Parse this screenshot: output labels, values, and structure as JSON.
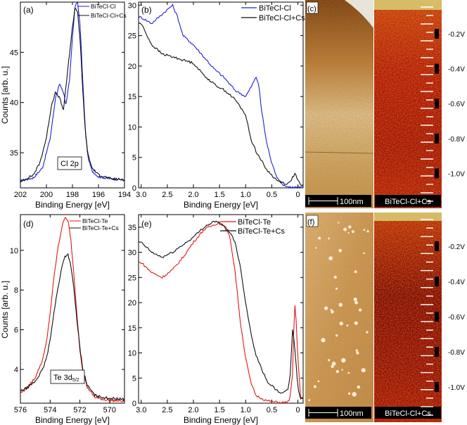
{
  "panels": {
    "a": {
      "label": "(a)",
      "xlabel": "Binding Energy [eV]",
      "ylabel": "Counts [arb. u.]",
      "xlim": [
        202,
        194
      ],
      "ylim": [
        31.5,
        50
      ],
      "xticks": [
        "202",
        "200",
        "198",
        "196",
        "194"
      ],
      "yticks": [
        "35",
        "40",
        "45"
      ],
      "annotation": "Cl 2p",
      "legend": [
        "BiTeCl-Cl",
        "BiTeCl-Cl+Cs"
      ]
    },
    "b": {
      "label": "(b)",
      "xlabel": "Binding Energy [eV]",
      "xlim": [
        3.05,
        -0.1
      ],
      "ylim": [
        0,
        30.5
      ],
      "xticks": [
        "3.0",
        "2.5",
        "2.0",
        "1.5",
        "1.0",
        "0.5",
        "0"
      ],
      "yticks": [
        "0",
        "5",
        "10",
        "15",
        "20",
        "25",
        "30"
      ],
      "legend": [
        "BiTeCl-Cl",
        "BiTeCl-Cl+Cs"
      ]
    },
    "c": {
      "label": "(c)",
      "scalebar": "100nm",
      "caption": "BiTeCl-Cl+Cs",
      "biases": [
        "-0.2V",
        "-0.4V",
        "-0.6V",
        "-0.8V",
        "-1.0V"
      ]
    },
    "d": {
      "label": "(d)",
      "xlabel": "Binding Energy [eV]",
      "ylabel": "Counts [arb. u.]",
      "xlim": [
        576,
        569
      ],
      "ylim": [
        2.3,
        11.8
      ],
      "xticks": [
        "576",
        "574",
        "572",
        "570"
      ],
      "yticks": [
        "4",
        "6",
        "8",
        "10"
      ],
      "annotation": "Te 3d",
      "annotation_sub": "5/2",
      "legend": [
        "BiTeCl-Te",
        "BiTeCl-Te+Cs"
      ]
    },
    "e": {
      "label": "(e)",
      "xlabel": "Binding Energy [eV]",
      "xlim": [
        3.05,
        -0.1
      ],
      "ylim": [
        0,
        37.5
      ],
      "xticks": [
        "3.0",
        "2.5",
        "2.0",
        "1.5",
        "1.0",
        "0.5",
        "0"
      ],
      "yticks": [
        "0",
        "5",
        "10",
        "15",
        "20",
        "25",
        "30",
        "35"
      ],
      "legend": [
        "BiTeCl-Te",
        "BiTeCl-Te+Cs"
      ]
    },
    "f": {
      "label": "(f)",
      "scalebar": "100nm",
      "caption": "BiTeCl-Cl+Cs",
      "biases": [
        "-0.2V",
        "-0.4V",
        "-0.6V",
        "-0.8V",
        "-1.0V"
      ]
    }
  },
  "colors": {
    "blue": "#1f1fdc",
    "black": "#111111",
    "red": "#e01818"
  },
  "chart_data": [
    {
      "type": "line",
      "panel": "a",
      "title": "Cl 2p",
      "xlabel": "Binding Energy [eV]",
      "ylabel": "Counts [arb. u.]",
      "xlim": [
        202,
        194
      ],
      "ylim": [
        31.5,
        50
      ],
      "series": [
        {
          "name": "BiTeCl-Cl",
          "color": "#1f1fdc",
          "x": [
            202,
            201,
            200.3,
            199.7,
            199.3,
            199.0,
            198.7,
            198.5,
            198.2,
            198.0,
            197.8,
            197.6,
            197.4,
            197.2,
            197.0,
            196.8,
            196.5,
            196.0,
            195.5,
            195.0,
            194.0
          ],
          "y": [
            32.2,
            32.5,
            33.5,
            36.5,
            40.5,
            41.8,
            41.0,
            39.8,
            42.5,
            46.5,
            49.6,
            50.0,
            47.5,
            42.0,
            37.0,
            34.5,
            33.2,
            32.6,
            32.5,
            32.4,
            32.3
          ]
        },
        {
          "name": "BiTeCl-Cl+Cs",
          "color": "#111111",
          "x": [
            202,
            201,
            200.5,
            200.0,
            199.6,
            199.3,
            199.0,
            198.7,
            198.5,
            198.3,
            198.0,
            197.8,
            197.6,
            197.4,
            197.2,
            197.0,
            196.8,
            196.5,
            196.0,
            195.0,
            194.0
          ],
          "y": [
            32.1,
            32.8,
            34.0,
            36.5,
            39.8,
            41.0,
            40.5,
            39.2,
            41.5,
            44.0,
            47.5,
            49.5,
            49.0,
            46.0,
            41.0,
            37.0,
            34.8,
            33.5,
            32.8,
            32.4,
            32.3
          ]
        }
      ]
    },
    {
      "type": "line",
      "panel": "b",
      "xlabel": "Binding Energy [eV]",
      "xlim": [
        3.05,
        -0.1
      ],
      "ylim": [
        0,
        30.5
      ],
      "series": [
        {
          "name": "BiTeCl-Cl",
          "color": "#1f1fdc",
          "x": [
            3.0,
            2.8,
            2.6,
            2.4,
            2.3,
            2.2,
            2.0,
            1.8,
            1.6,
            1.4,
            1.2,
            1.0,
            0.9,
            0.8,
            0.75,
            0.7,
            0.6,
            0.5,
            0.4,
            0.3,
            0.2,
            0.1,
            0.0
          ],
          "y": [
            28,
            27,
            28.5,
            30,
            28,
            25,
            23.5,
            21.5,
            19.5,
            18,
            16,
            15,
            16.5,
            18.2,
            17,
            13,
            7.5,
            4,
            1.8,
            0.6,
            0.2,
            0.1,
            0.1
          ]
        },
        {
          "name": "BiTeCl-Cl+Cs",
          "color": "#111111",
          "x": [
            3.0,
            2.8,
            2.6,
            2.4,
            2.2,
            2.0,
            1.8,
            1.6,
            1.4,
            1.2,
            1.0,
            0.9,
            0.8,
            0.6,
            0.4,
            0.2,
            0.15,
            0.1,
            0.05,
            0.0,
            -0.05
          ],
          "y": [
            27,
            23.5,
            22,
            21.5,
            21,
            20.5,
            18.5,
            17,
            16,
            14.5,
            12,
            8,
            6,
            3,
            1.2,
            0.6,
            1.0,
            1.8,
            2.3,
            1.2,
            0.4
          ]
        }
      ]
    },
    {
      "type": "line",
      "panel": "d",
      "title": "Te 3d5/2",
      "xlabel": "Binding Energy [eV]",
      "ylabel": "Counts [arb. u.]",
      "xlim": [
        576,
        569
      ],
      "ylim": [
        2.3,
        11.8
      ],
      "series": [
        {
          "name": "BiTeCl-Te",
          "color": "#e01818",
          "x": [
            576,
            575.5,
            575,
            574.5,
            574.2,
            574.0,
            573.8,
            573.5,
            573.2,
            573.0,
            572.8,
            572.6,
            572.4,
            572.2,
            572.0,
            571.8,
            571.5,
            571.0,
            570.5,
            570.0,
            569.0
          ],
          "y": [
            2.8,
            3.1,
            3.6,
            4.5,
            5.6,
            6.8,
            8.3,
            10.0,
            11.2,
            11.7,
            11.5,
            10.5,
            8.7,
            6.8,
            5.0,
            3.9,
            3.1,
            2.6,
            2.5,
            2.45,
            2.4
          ]
        },
        {
          "name": "BiTeCl-Te+Cs",
          "color": "#111111",
          "x": [
            576,
            575.5,
            575,
            574.5,
            574.2,
            574.0,
            573.8,
            573.5,
            573.2,
            573.0,
            572.8,
            572.6,
            572.4,
            572.2,
            572.0,
            571.8,
            571.5,
            571.0,
            570.5,
            570.0,
            569.0
          ],
          "y": [
            2.9,
            3.1,
            3.4,
            4.0,
            4.7,
            5.5,
            6.6,
            8.0,
            9.2,
            9.7,
            9.8,
            9.2,
            8.0,
            6.5,
            5.1,
            4.0,
            3.2,
            2.7,
            2.6,
            2.55,
            2.5
          ]
        }
      ]
    },
    {
      "type": "line",
      "panel": "e",
      "xlabel": "Binding Energy [eV]",
      "xlim": [
        3.05,
        -0.1
      ],
      "ylim": [
        0,
        37.5
      ],
      "series": [
        {
          "name": "BiTeCl-Te",
          "color": "#e01818",
          "x": [
            3.0,
            2.8,
            2.6,
            2.4,
            2.2,
            2.0,
            1.8,
            1.6,
            1.5,
            1.4,
            1.3,
            1.2,
            1.1,
            1.0,
            0.9,
            0.8,
            0.6,
            0.4,
            0.3,
            0.2,
            0.15,
            0.1,
            0.07,
            0.05,
            0.0,
            -0.05
          ],
          "y": [
            28,
            26,
            25,
            26.5,
            29,
            32,
            34.5,
            35.5,
            36,
            35,
            33,
            26,
            16,
            9,
            4,
            1.5,
            0.5,
            0.2,
            0.1,
            0.2,
            1,
            6,
            18,
            20,
            9,
            1
          ]
        },
        {
          "name": "BiTeCl-Te+Cs",
          "color": "#111111",
          "x": [
            3.0,
            2.8,
            2.6,
            2.4,
            2.2,
            2.0,
            1.8,
            1.6,
            1.5,
            1.4,
            1.3,
            1.2,
            1.1,
            1.0,
            0.9,
            0.8,
            0.6,
            0.4,
            0.3,
            0.2,
            0.15,
            0.1,
            0.05,
            0.0,
            -0.05
          ],
          "y": [
            32,
            30,
            29,
            30,
            31.5,
            33,
            35,
            36.2,
            35.8,
            35,
            34,
            32,
            27,
            20,
            14,
            9.5,
            4.5,
            2.5,
            2.0,
            2.5,
            5,
            15,
            10,
            3,
            1
          ]
        }
      ]
    }
  ]
}
